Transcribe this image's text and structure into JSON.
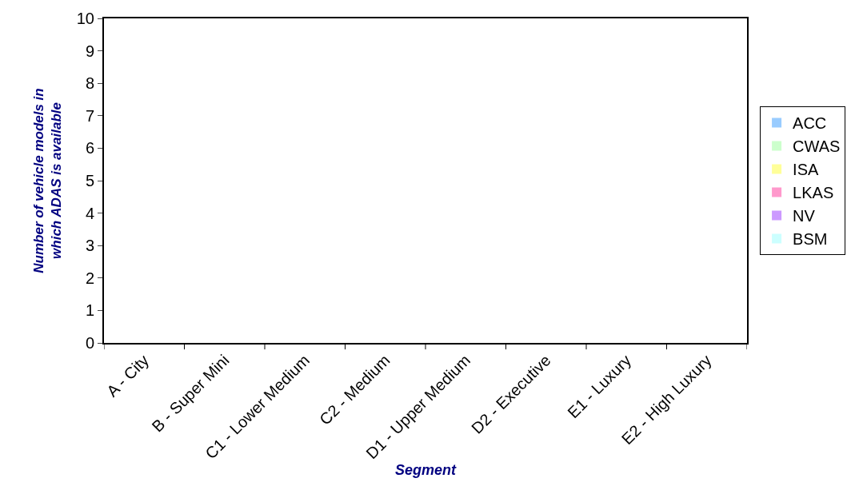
{
  "chart_data": {
    "type": "bar",
    "xlabel": "Segment",
    "ylabel": "Number of vehicle models in\nwhich ADAS is available",
    "categories": [
      "A - City",
      "B - Super Mini",
      "C1 - Lower Medium",
      "C2 - Medium",
      "D1 - Upper Medium",
      "D2 - Executive",
      "E1 - Luxury",
      "E2 - High Luxury"
    ],
    "series": [
      {
        "name": "ACC",
        "color": "#99ccff",
        "values": [
          0,
          0,
          0,
          0,
          0,
          0,
          0,
          0
        ]
      },
      {
        "name": "CWAS",
        "color": "#ccffcc",
        "values": [
          0,
          0,
          0,
          0,
          0,
          0,
          0,
          0
        ]
      },
      {
        "name": "ISA",
        "color": "#ffff99",
        "values": [
          0,
          0,
          0,
          0,
          0,
          0,
          0,
          0
        ]
      },
      {
        "name": "LKAS",
        "color": "#ff99cc",
        "values": [
          0,
          0,
          0,
          0,
          0,
          0,
          0,
          0
        ]
      },
      {
        "name": "NV",
        "color": "#cc99ff",
        "values": [
          0,
          0,
          0,
          0,
          0,
          0,
          0,
          0
        ]
      },
      {
        "name": "BSM",
        "color": "#ccffff",
        "values": [
          0,
          0,
          0,
          0,
          0,
          0,
          0,
          0
        ]
      }
    ],
    "ylim": [
      0,
      10
    ],
    "yticks": [
      0,
      1,
      2,
      3,
      4,
      5,
      6,
      7,
      8,
      9,
      10
    ],
    "legend": "right"
  }
}
